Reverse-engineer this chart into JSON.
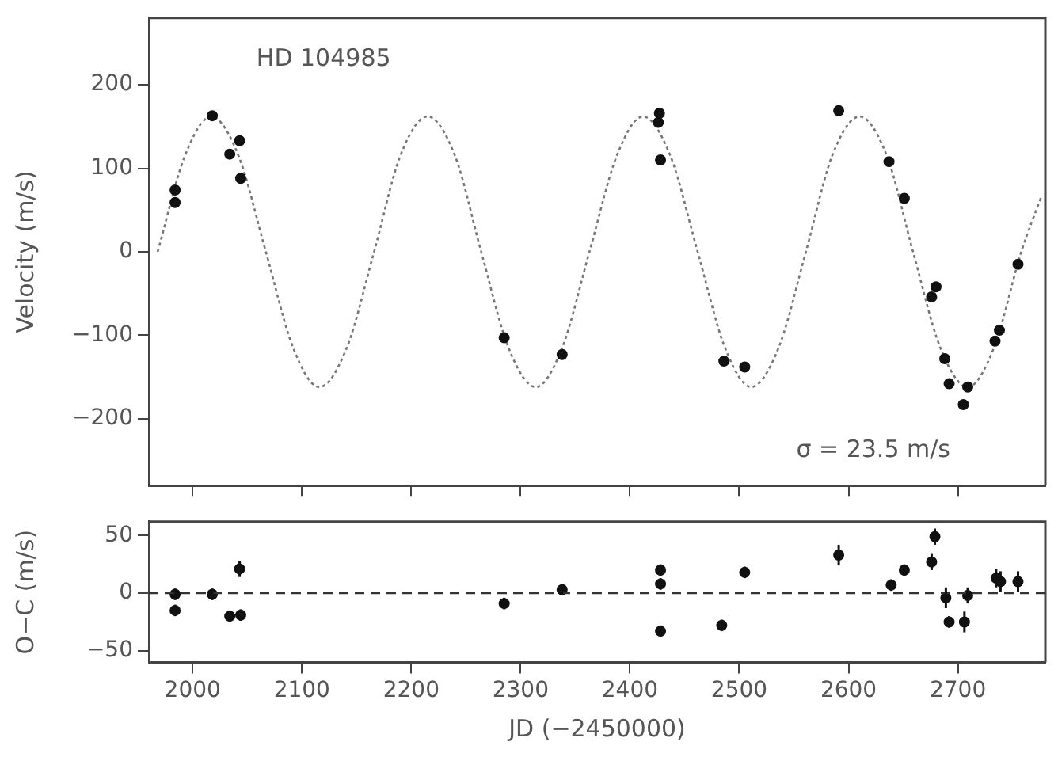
{
  "chart_data": [
    {
      "type": "scatter",
      "ylabel": "Velocity (m/s)",
      "annotations": [
        "HD 104985",
        "σ = 23.5 m/s"
      ],
      "xlim": [
        1960,
        2780
      ],
      "xticks": [
        2000,
        2100,
        2200,
        2300,
        2400,
        2500,
        2600,
        2700
      ],
      "ylim": [
        -280,
        280
      ],
      "yticks": [
        -200,
        -100,
        0,
        100,
        200
      ],
      "tick_labels": "y",
      "grid": false,
      "legend": false,
      "marker": "circle",
      "series": [
        {
          "type": "line",
          "color": "#777777",
          "line_style": "dotted",
          "marker": "none",
          "x": [
            1968,
            1993,
            2017,
            2042,
            2067,
            2092,
            2116,
            2141,
            2166,
            2190,
            2215,
            2240,
            2264,
            2289,
            2314,
            2338,
            2363,
            2388,
            2412,
            2437,
            2462,
            2487,
            2511,
            2536,
            2561,
            2585,
            2610,
            2635,
            2659,
            2684,
            2709,
            2733,
            2758,
            2776
          ],
          "values": [
            0,
            115,
            162,
            115,
            0,
            -115,
            -162,
            -115,
            0,
            115,
            162,
            115,
            0,
            -115,
            -162,
            -115,
            0,
            115,
            162,
            115,
            0,
            -115,
            -162,
            -115,
            0,
            115,
            162,
            115,
            0,
            -115,
            -162,
            -115,
            0,
            65
          ]
        },
        {
          "type": "scatter",
          "color": "#111111",
          "x": [
            1984,
            1984,
            2018,
            2034,
            2043,
            2044,
            2285,
            2338,
            2427,
            2426,
            2428,
            2486,
            2505,
            2591,
            2637,
            2651,
            2680,
            2676,
            2688,
            2692,
            2709,
            2705,
            2734,
            2738,
            2755
          ],
          "values": [
            74,
            59,
            163,
            117,
            133,
            88,
            -103,
            -123,
            166,
            155,
            110,
            -131,
            -138,
            169,
            108,
            64,
            -42,
            -54,
            -128,
            -158,
            -162,
            -183,
            -107,
            -94,
            -15
          ]
        }
      ]
    },
    {
      "type": "scatter",
      "xlabel": "JD (−2450000)",
      "ylabel": "O−C (m/s)",
      "xlim": [
        1960,
        2780
      ],
      "xticks": [
        2000,
        2100,
        2200,
        2300,
        2400,
        2500,
        2600,
        2700
      ],
      "ylim": [
        -60,
        62
      ],
      "yticks": [
        -50,
        0,
        50
      ],
      "grid": false,
      "legend": false,
      "marker": "circle",
      "ref_lines": [
        {
          "axis": "y",
          "value": 0,
          "line_style": "dashed",
          "color": "#333333"
        }
      ],
      "series": [
        {
          "type": "scatter",
          "color": "#111111",
          "x": [
            1984,
            1984,
            2018,
            2034,
            2044,
            2043,
            2285,
            2338,
            2428,
            2428,
            2428,
            2484,
            2505,
            2591,
            2639,
            2651,
            2676,
            2679,
            2689,
            2692,
            2706,
            2709,
            2735,
            2739,
            2755
          ],
          "values": [
            -1,
            -15,
            -1,
            -20,
            -19,
            21,
            -9,
            3,
            20,
            8,
            -33,
            -28,
            18,
            33,
            7,
            20,
            27,
            49,
            -4,
            -25,
            -25,
            -2,
            13,
            10,
            10
          ],
          "errors": [
            5,
            5,
            5,
            5,
            5,
            7,
            5,
            5,
            5,
            5,
            5,
            5,
            5,
            9,
            5,
            5,
            7,
            7,
            9,
            5,
            9,
            7,
            8,
            9,
            9
          ]
        }
      ]
    }
  ]
}
